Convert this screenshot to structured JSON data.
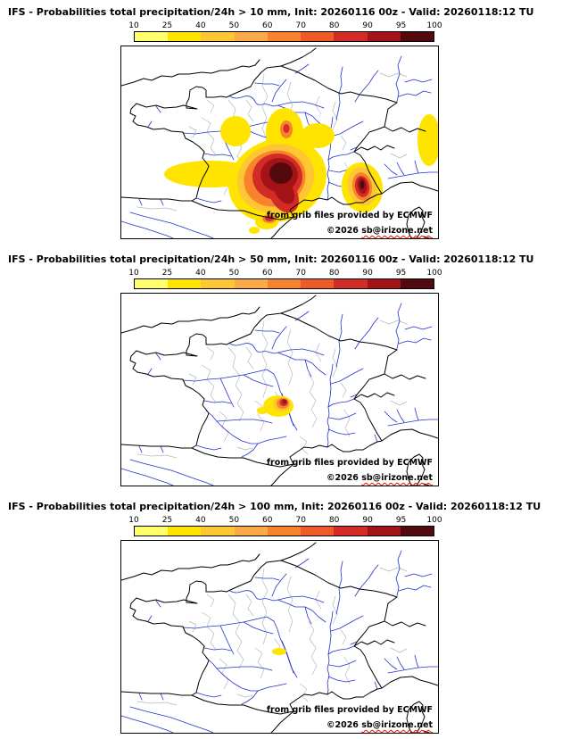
{
  "panels": [
    {
      "title": "IFS - Probabilities total precipitation/24h > 10 mm, Init: 20260116 00z - Valid: 20260118:12 TU",
      "threshold_label": "> 10 mm",
      "attribution": {
        "source": "from grib files provided by ECMWF",
        "copyright_prefix": "©2026 ",
        "author": "sb@irizone.net"
      }
    },
    {
      "title": "IFS - Probabilities total precipitation/24h > 50 mm, Init: 20260116 00z - Valid: 20260118:12 TU",
      "threshold_label": "> 50 mm",
      "attribution": {
        "source": "from grib files provided by ECMWF",
        "copyright_prefix": "©2026 ",
        "author": "sb@irizone.net"
      }
    },
    {
      "title": "IFS - Probabilities total precipitation/24h > 100 mm, Init: 20260116 00z - Valid: 20260118:12 TU",
      "threshold_label": "> 100 mm",
      "attribution": {
        "source": "from grib files provided by ECMWF",
        "copyright_prefix": "©2026 ",
        "author": "sb@irizone.net"
      }
    }
  ],
  "colorbar": {
    "labels": [
      "10",
      "25",
      "40",
      "50",
      "60",
      "70",
      "80",
      "90",
      "95",
      "100"
    ],
    "colors": [
      "#ffff6b",
      "#ffe400",
      "#fdc733",
      "#fbaa47",
      "#f8832e",
      "#ee5a28",
      "#d32b26",
      "#a31318",
      "#530a0e"
    ],
    "unit": "%"
  },
  "map": {
    "coast_color": "#000000",
    "river_color": "#2233cc",
    "admin_color": "#b8b8b8",
    "land_color": "#ffffff"
  }
}
